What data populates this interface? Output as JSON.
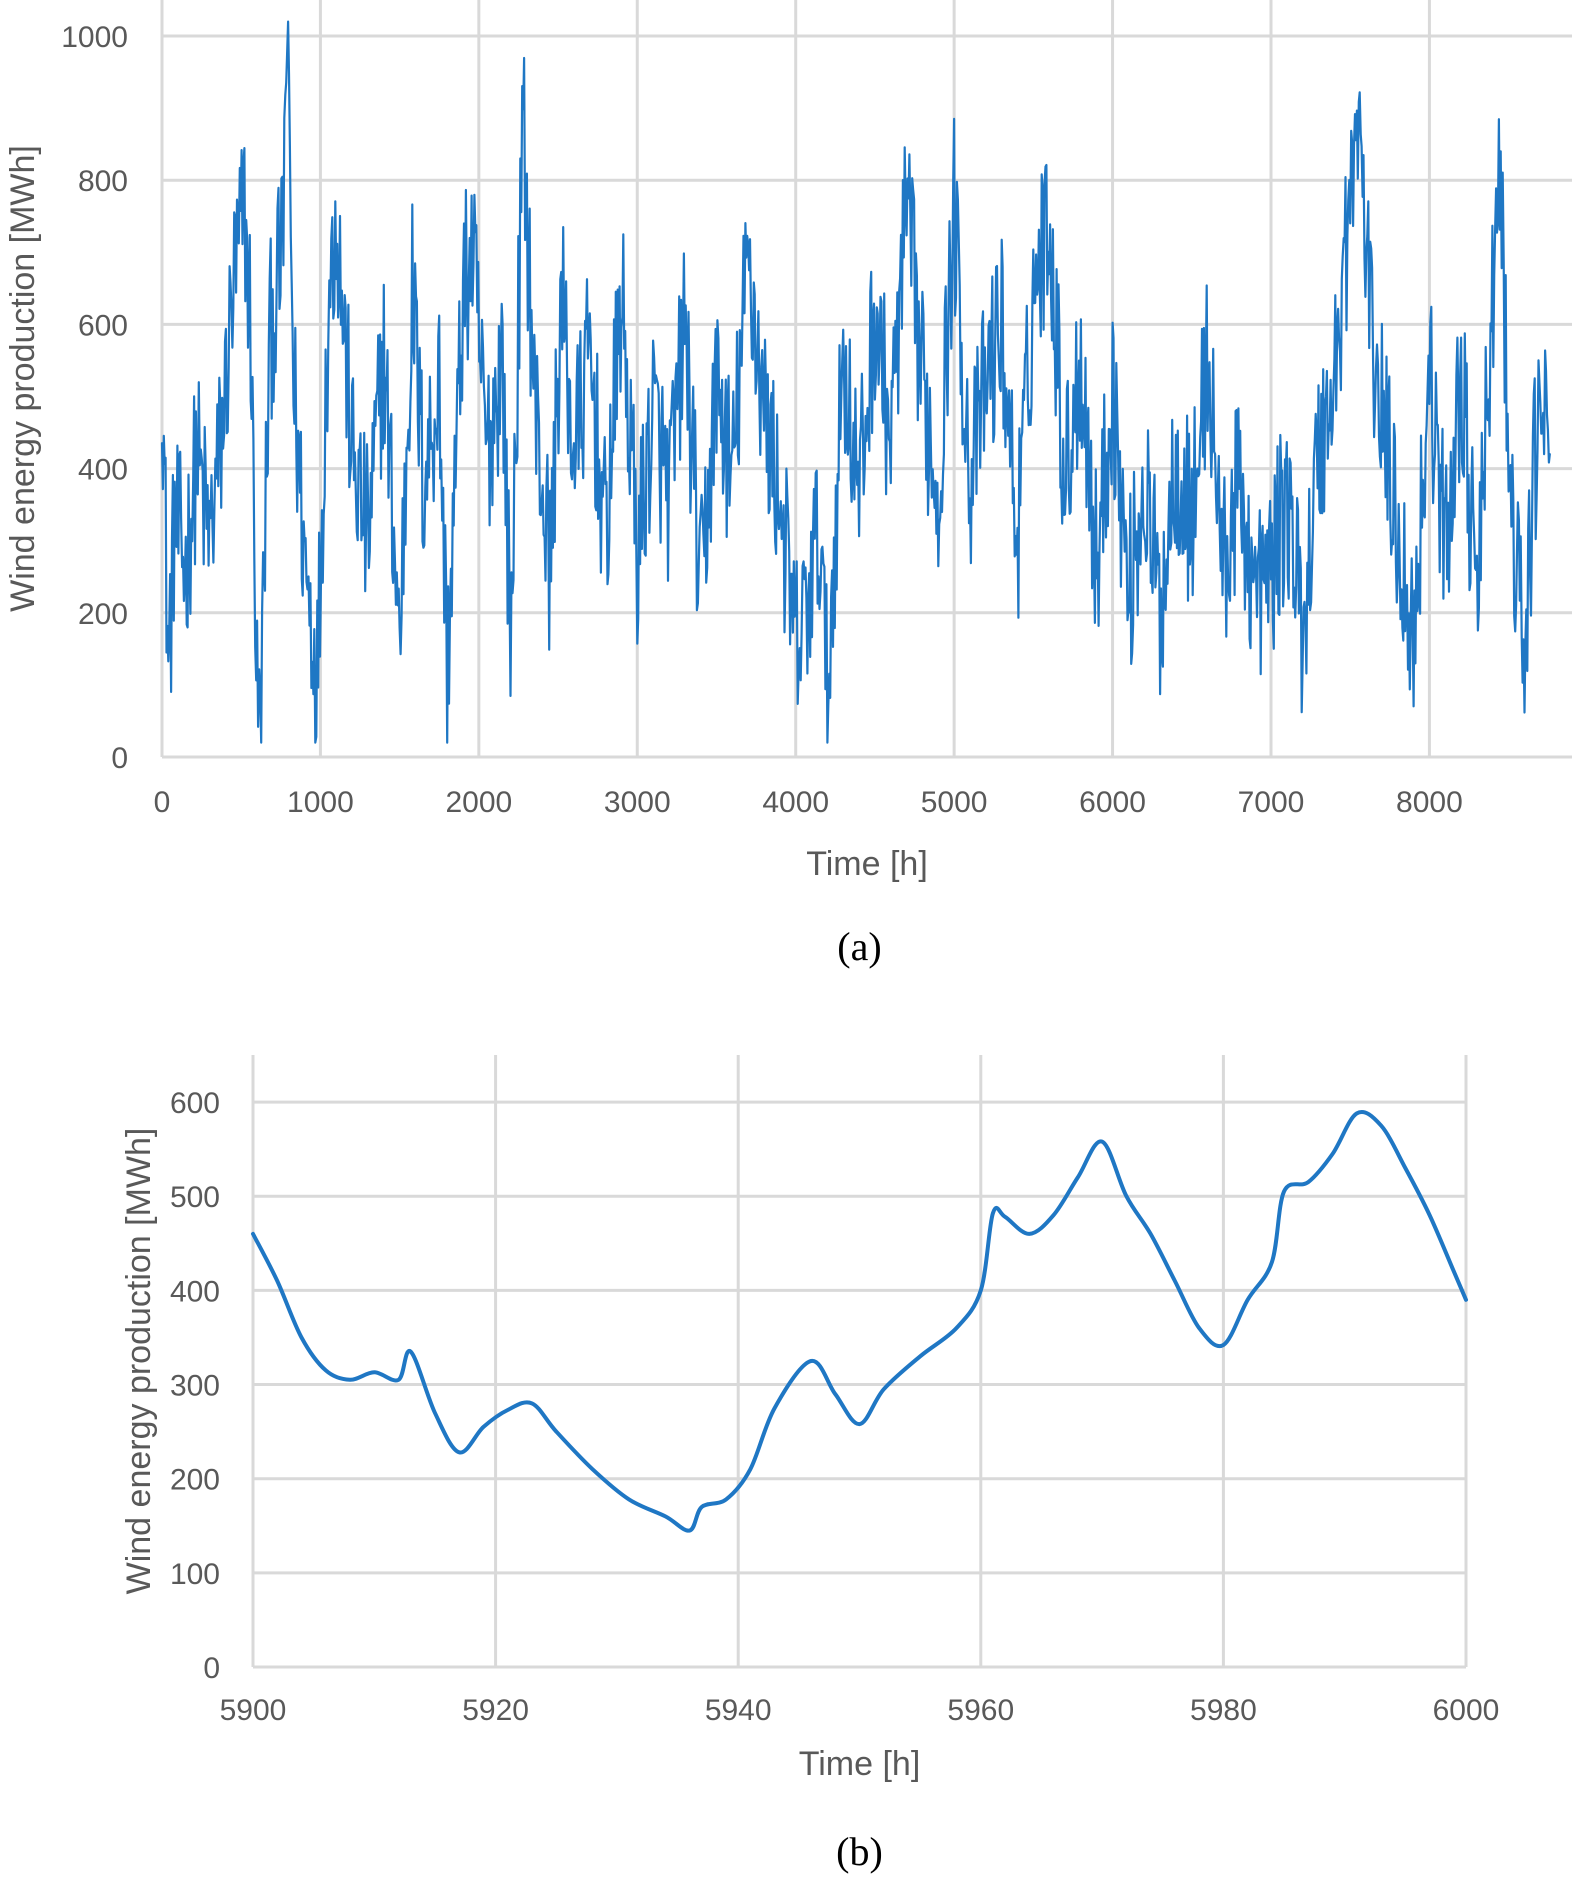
{
  "chart_data": [
    {
      "type": "line",
      "caption": "(a)",
      "xlabel": "Time [h]",
      "ylabel": "Wind energy production [MWh]",
      "xlim": [
        0,
        8900
      ],
      "ylim": [
        0,
        1050
      ],
      "xticks": [
        0,
        1000,
        2000,
        3000,
        4000,
        5000,
        6000,
        7000,
        8000
      ],
      "yticks": [
        0,
        200,
        400,
        600,
        800,
        1000
      ],
      "grid": true,
      "series": [
        {
          "color": "#1f77c4",
          "note_points": "hourly values, 8760 points; key points listed",
          "x": [
            0,
            40,
            80,
            150,
            220,
            300,
            380,
            450,
            520,
            560,
            600,
            620,
            680,
            760,
            790,
            830,
            900,
            980,
            1050,
            1100,
            1200,
            1300,
            1400,
            1500,
            1580,
            1650,
            1750,
            1800,
            1900,
            1960,
            2050,
            2150,
            2200,
            2280,
            2350,
            2450,
            2520,
            2600,
            2700,
            2800,
            2900,
            3000,
            3100,
            3200,
            3300,
            3400,
            3500,
            3600,
            3700,
            3800,
            3900,
            4000,
            4050,
            4150,
            4200,
            4300,
            4400,
            4500,
            4600,
            4700,
            4800,
            4900,
            5000,
            5100,
            5200,
            5300,
            5400,
            5500,
            5600,
            5700,
            5800,
            5900,
            6000,
            6100,
            6200,
            6300,
            6400,
            6500,
            6600,
            6700,
            6800,
            6900,
            7000,
            7100,
            7200,
            7300,
            7400,
            7500,
            7560,
            7620,
            7700,
            7800,
            7900,
            8000,
            8100,
            8200,
            8300,
            8380,
            8450,
            8500,
            8600,
            8700,
            8760
          ],
          "y": [
            560,
            120,
            330,
            260,
            420,
            300,
            450,
            650,
            760,
            600,
            90,
            30,
            580,
            700,
            1020,
            520,
            280,
            120,
            620,
            760,
            420,
            300,
            560,
            160,
            650,
            380,
            520,
            120,
            640,
            700,
            420,
            560,
            150,
            880,
            500,
            260,
            640,
            420,
            560,
            300,
            640,
            280,
            480,
            360,
            600,
            220,
            520,
            380,
            700,
            480,
            360,
            150,
            180,
            320,
            80,
            560,
            360,
            620,
            440,
            760,
            520,
            360,
            760,
            380,
            520,
            600,
            300,
            640,
            760,
            380,
            560,
            260,
            520,
            220,
            380,
            200,
            420,
            320,
            560,
            260,
            380,
            220,
            260,
            360,
            180,
            420,
            520,
            780,
            880,
            620,
            480,
            320,
            160,
            540,
            280,
            540,
            200,
            560,
            820,
            380,
            140,
            540,
            420
          ]
        }
      ]
    },
    {
      "type": "line",
      "caption": "(b)",
      "xlabel": "Time [h]",
      "ylabel": "Wind energy production [MWh]",
      "xlim": [
        5900,
        6000
      ],
      "ylim": [
        0,
        650
      ],
      "xticks": [
        5900,
        5920,
        5940,
        5960,
        5980,
        6000
      ],
      "yticks": [
        0,
        100,
        200,
        300,
        400,
        500,
        600
      ],
      "grid": true,
      "series": [
        {
          "color": "#1f77c4",
          "x": [
            5900,
            5902,
            5904,
            5906,
            5908,
            5910,
            5912,
            5913,
            5915,
            5917,
            5919,
            5921,
            5923,
            5925,
            5928,
            5931,
            5934,
            5936,
            5937,
            5939,
            5941,
            5943,
            5946,
            5948,
            5950,
            5952,
            5955,
            5958,
            5960,
            5961,
            5962,
            5964,
            5966,
            5968,
            5970,
            5972,
            5974,
            5976,
            5978,
            5980,
            5982,
            5984,
            5985,
            5987,
            5989,
            5991,
            5993,
            5995,
            5997,
            5999,
            6000
          ],
          "y": [
            460,
            410,
            350,
            315,
            305,
            313,
            305,
            335,
            270,
            228,
            255,
            273,
            280,
            250,
            210,
            178,
            160,
            145,
            170,
            178,
            210,
            275,
            325,
            290,
            258,
            295,
            330,
            360,
            400,
            482,
            478,
            460,
            480,
            520,
            558,
            500,
            460,
            410,
            360,
            342,
            390,
            430,
            505,
            515,
            545,
            588,
            575,
            530,
            480,
            420,
            390
          ]
        }
      ]
    }
  ]
}
